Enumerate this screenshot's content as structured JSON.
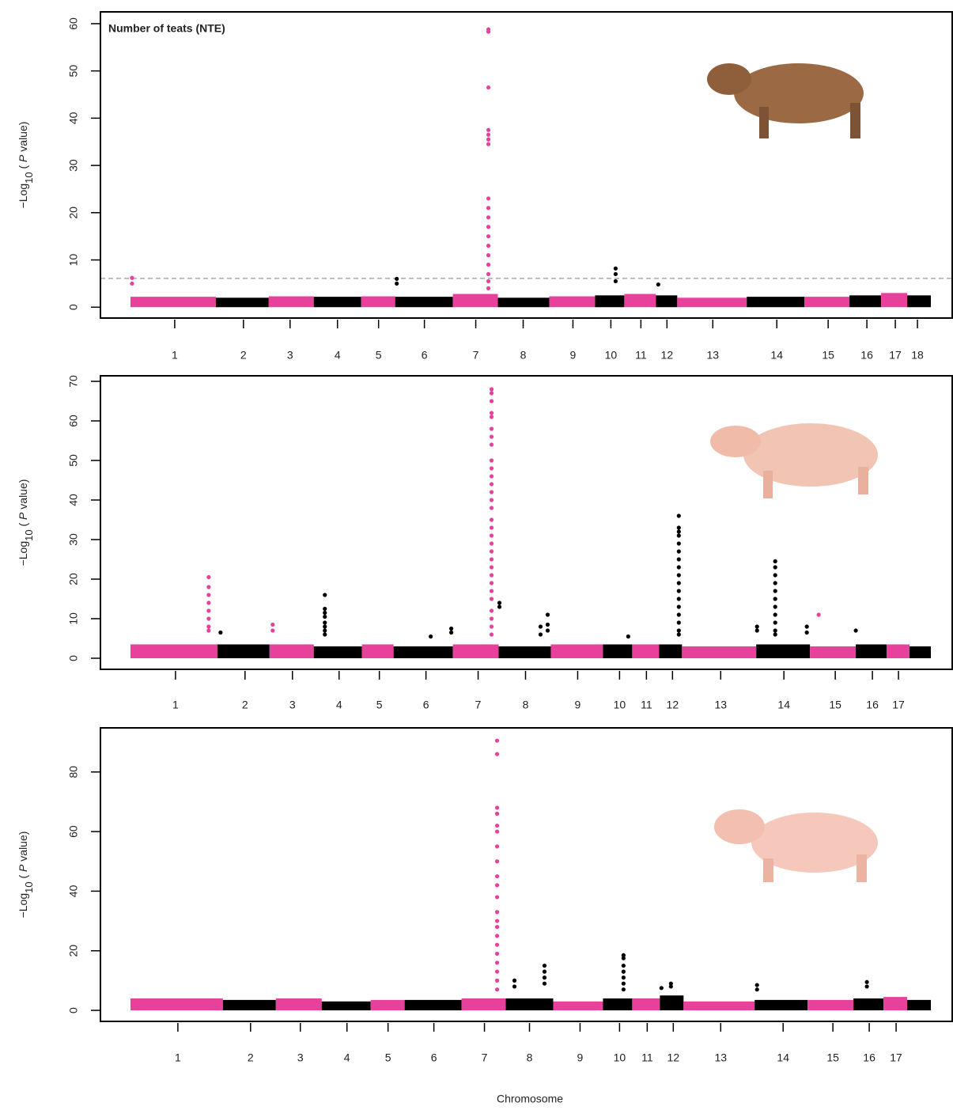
{
  "chart_data": [
    {
      "type": "manhattan",
      "title": "Number of teats (NTE)",
      "y_label": [
        "−Log",
        "10",
        " ( ",
        "P",
        " value)"
      ],
      "xlim": [
        0,
        1078
      ],
      "ylim": [
        -2.3,
        62.5
      ],
      "yticks": [
        0,
        10,
        20,
        30,
        40,
        50,
        60
      ],
      "colors": [
        "#e8419b",
        "#000000"
      ],
      "threshold": 6.1,
      "threshold_color": "#aaaaaa",
      "xticks": [
        {
          "value": 94,
          "label": "1"
        },
        {
          "value": 181,
          "label": "2"
        },
        {
          "value": 240,
          "label": "3"
        },
        {
          "value": 300,
          "label": "4"
        },
        {
          "value": 352,
          "label": "5"
        },
        {
          "value": 410,
          "label": "6"
        },
        {
          "value": 475,
          "label": "7"
        },
        {
          "value": 535,
          "label": "8"
        },
        {
          "value": 598,
          "label": "9"
        },
        {
          "value": 646,
          "label": "10"
        },
        {
          "value": 684,
          "label": "11"
        },
        {
          "value": 717,
          "label": "12"
        },
        {
          "value": 775,
          "label": "13"
        },
        {
          "value": 856,
          "label": "14"
        },
        {
          "value": 921,
          "label": "15"
        },
        {
          "value": 970,
          "label": "16"
        },
        {
          "value": 1006,
          "label": "17"
        },
        {
          "value": 1034,
          "label": "18"
        }
      ],
      "boundaries": [
        38,
        146,
        213,
        270,
        330,
        373,
        446,
        503,
        568,
        626,
        663,
        703,
        730,
        818,
        891,
        948,
        988,
        1021,
        1051
      ],
      "band_heights": [
        2.2,
        2,
        2.3,
        2.2,
        2.3,
        2.2,
        2.8,
        2,
        2.3,
        2.5,
        2.8,
        2.5,
        2,
        2.2,
        2.2,
        2.5,
        3,
        2.5
      ],
      "x": [
        491,
        491,
        491,
        491,
        491,
        491,
        491,
        491,
        491,
        491,
        491,
        491,
        491,
        491,
        491,
        491,
        491,
        491,
        375,
        375,
        40,
        40,
        652,
        652,
        652,
        706
      ],
      "y": [
        58.8,
        58.3,
        46.5,
        37.5,
        36.5,
        35.5,
        34.5,
        23,
        21,
        19,
        17,
        15,
        13,
        11,
        9,
        7,
        5.5,
        4,
        6,
        5,
        6.2,
        5,
        8.2,
        7,
        5.5,
        4.8
      ]
    },
    {
      "type": "manhattan",
      "y_label": [
        "−Log",
        "10",
        " ( ",
        "P",
        " value)"
      ],
      "xlim": [
        0,
        1078
      ],
      "ylim": [
        -2.8,
        71.4
      ],
      "yticks": [
        0,
        10,
        20,
        30,
        40,
        50,
        60,
        70
      ],
      "colors": [
        "#e8419b",
        "#000000"
      ],
      "xticks": [
        {
          "value": 95,
          "label": "1"
        },
        {
          "value": 183,
          "label": "2"
        },
        {
          "value": 243,
          "label": "3"
        },
        {
          "value": 302,
          "label": "4"
        },
        {
          "value": 353,
          "label": "5"
        },
        {
          "value": 412,
          "label": "6"
        },
        {
          "value": 478,
          "label": "7"
        },
        {
          "value": 538,
          "label": "8"
        },
        {
          "value": 604,
          "label": "9"
        },
        {
          "value": 657,
          "label": "10"
        },
        {
          "value": 691,
          "label": "11"
        },
        {
          "value": 724,
          "label": "12"
        },
        {
          "value": 785,
          "label": "13"
        },
        {
          "value": 865,
          "label": "14"
        },
        {
          "value": 930,
          "label": "15"
        },
        {
          "value": 977,
          "label": "16"
        },
        {
          "value": 1010,
          "label": "17"
        }
      ],
      "boundaries": [
        38,
        148,
        214,
        270,
        331,
        371,
        446,
        504,
        570,
        636,
        673,
        707,
        736,
        830,
        898,
        956,
        995,
        1024,
        1051
      ],
      "band_heights": [
        3.5,
        3.5,
        3.5,
        3,
        3.5,
        3,
        3.5,
        3,
        3.5,
        3.5,
        3.5,
        3.5,
        3,
        3.5,
        3,
        3.5,
        3.5,
        3
      ],
      "x": [
        137,
        137,
        137,
        137,
        137,
        137,
        137,
        137,
        152,
        218,
        218,
        284,
        284,
        284,
        284,
        284,
        284,
        284,
        284,
        418,
        444,
        444,
        495,
        495,
        495,
        495,
        495,
        495,
        495,
        495,
        495,
        495,
        495,
        495,
        495,
        495,
        495,
        495,
        495,
        495,
        495,
        495,
        495,
        495,
        495,
        495,
        495,
        495,
        495,
        495,
        495,
        495,
        505,
        505,
        566,
        566,
        566,
        557,
        557,
        668,
        732,
        732,
        732,
        732,
        732,
        732,
        732,
        732,
        732,
        732,
        732,
        732,
        732,
        732,
        732,
        732,
        732,
        854,
        854,
        854,
        854,
        854,
        854,
        854,
        854,
        854,
        854,
        854,
        831,
        831,
        894,
        894,
        909,
        956
      ],
      "y": [
        20.5,
        18,
        16,
        14,
        12,
        10,
        8,
        7,
        6.5,
        8.5,
        7,
        16,
        12.5,
        11.5,
        10.5,
        9,
        8,
        7,
        6,
        5.5,
        7.5,
        6.5,
        68,
        67,
        65,
        62,
        61,
        58,
        56,
        54,
        50,
        48,
        46,
        44,
        42,
        40,
        38,
        35,
        33,
        31,
        29,
        27,
        25,
        23,
        21,
        19,
        17,
        15,
        12,
        10,
        8,
        6,
        14,
        13,
        11,
        8.5,
        7,
        8,
        6,
        5.5,
        36,
        33,
        32,
        31,
        29,
        27,
        25,
        23,
        21,
        19,
        17,
        15,
        13,
        11,
        9,
        7,
        6,
        24.5,
        23,
        21,
        19,
        17,
        15,
        13,
        11,
        9,
        7,
        6,
        8,
        7,
        8,
        6.5,
        11,
        7
      ]
    },
    {
      "type": "manhattan",
      "x_label": "Chromosome",
      "y_label": [
        "−Log",
        "10",
        " ( ",
        "P",
        " value)"
      ],
      "xlim": [
        0,
        1078
      ],
      "ylim": [
        -3.7,
        94.8
      ],
      "yticks": [
        0,
        20,
        40,
        60,
        80
      ],
      "colors": [
        "#e8419b",
        "#000000"
      ],
      "xticks": [
        {
          "value": 98,
          "label": "1"
        },
        {
          "value": 190,
          "label": "2"
        },
        {
          "value": 253,
          "label": "3"
        },
        {
          "value": 312,
          "label": "4"
        },
        {
          "value": 364,
          "label": "5"
        },
        {
          "value": 422,
          "label": "6"
        },
        {
          "value": 486,
          "label": "7"
        },
        {
          "value": 543,
          "label": "8"
        },
        {
          "value": 607,
          "label": "9"
        },
        {
          "value": 657,
          "label": "10"
        },
        {
          "value": 692,
          "label": "11"
        },
        {
          "value": 725,
          "label": "12"
        },
        {
          "value": 785,
          "label": "13"
        },
        {
          "value": 864,
          "label": "14"
        },
        {
          "value": 927,
          "label": "15"
        },
        {
          "value": 973,
          "label": "16"
        },
        {
          "value": 1007,
          "label": "17"
        }
      ],
      "boundaries": [
        38,
        155,
        222,
        280,
        342,
        385,
        457,
        513,
        573,
        636,
        673,
        708,
        738,
        828,
        895,
        953,
        991,
        1021,
        1051
      ],
      "band_heights": [
        4,
        3.5,
        4,
        3,
        3.5,
        3.5,
        4,
        4,
        3,
        4,
        4,
        5,
        3,
        3.5,
        3.5,
        4,
        4.5,
        3.5
      ],
      "x": [
        502,
        502,
        502,
        502,
        502,
        502,
        502,
        502,
        502,
        502,
        502,
        502,
        502,
        502,
        502,
        502,
        502,
        502,
        502,
        502,
        502,
        524,
        524,
        562,
        562,
        562,
        562,
        662,
        662,
        662,
        662,
        662,
        662,
        662,
        722,
        722,
        710,
        831,
        831,
        970,
        970
      ],
      "y": [
        90.5,
        86,
        68,
        66,
        62,
        60,
        55,
        50,
        45,
        42,
        38,
        33,
        30,
        28,
        25,
        22,
        19,
        16,
        13,
        10,
        7,
        10,
        8,
        15,
        13,
        11,
        9,
        18.5,
        17.5,
        15,
        13,
        11,
        9,
        7,
        9,
        8,
        7.5,
        8.5,
        7,
        9.5,
        8
      ]
    }
  ]
}
